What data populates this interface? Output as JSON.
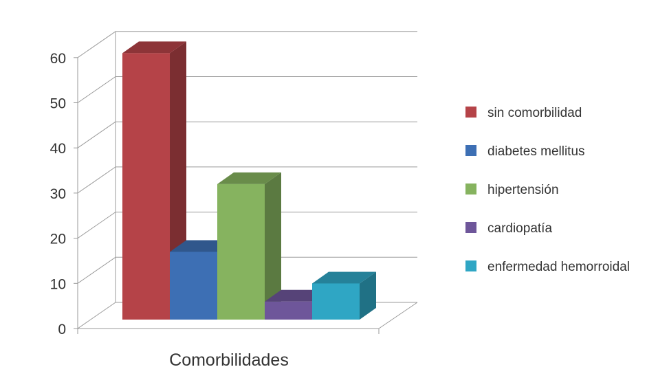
{
  "chart_data": {
    "type": "bar",
    "xlabel": "Comorbilidades",
    "ylabel": "",
    "title": "",
    "ylim": [
      0,
      60
    ],
    "yticks": [
      0,
      10,
      20,
      30,
      40,
      50,
      60
    ],
    "legend_position": "right",
    "grid": true,
    "series": [
      {
        "name": "sin comorbilidad",
        "value": 59,
        "color": "#B54348"
      },
      {
        "name": "diabetes mellitus",
        "value": 15,
        "color": "#3D6FB4"
      },
      {
        "name": "hipertensión",
        "value": 30,
        "color": "#86B35F"
      },
      {
        "name": "cardiopatía",
        "value": 4,
        "color": "#6E569A"
      },
      {
        "name": "enfermedad hemorroidal",
        "value": 8,
        "color": "#2FA6C4"
      }
    ]
  }
}
